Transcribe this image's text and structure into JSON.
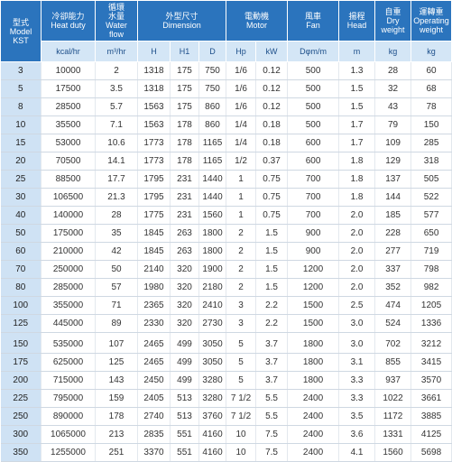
{
  "header": {
    "columns": [
      [
        "型式",
        "Model",
        "KST"
      ],
      [
        "冷卻能力",
        "Heat duty"
      ],
      [
        "循環",
        "水量",
        "Water",
        "flow"
      ],
      [
        "外型尺寸",
        "Dimension"
      ],
      [
        "電動機",
        "Motor"
      ],
      [
        "風車",
        "Fan"
      ],
      [
        "揚程",
        "Head"
      ],
      [
        "自重",
        "Dry",
        "weight"
      ],
      [
        "運轉重",
        "Operating",
        "weight"
      ]
    ],
    "units": [
      "kcal/hr",
      "m³/hr",
      "H",
      "H1",
      "D",
      "Hp",
      "kW",
      "Dφm/m",
      "m",
      "kg",
      "kg"
    ]
  },
  "table": {
    "rows": [
      [
        "3",
        "10000",
        "2",
        "1318",
        "175",
        "750",
        "1/6",
        "0.12",
        "500",
        "1.3",
        "28",
        "60"
      ],
      [
        "5",
        "17500",
        "3.5",
        "1318",
        "175",
        "750",
        "1/6",
        "0.12",
        "500",
        "1.5",
        "32",
        "68"
      ],
      [
        "8",
        "28500",
        "5.7",
        "1563",
        "175",
        "860",
        "1/6",
        "0.12",
        "500",
        "1.5",
        "43",
        "78"
      ],
      [
        "10",
        "35500",
        "7.1",
        "1563",
        "178",
        "860",
        "1/4",
        "0.18",
        "500",
        "1.7",
        "79",
        "150"
      ],
      [
        "15",
        "53000",
        "10.6",
        "1773",
        "178",
        "1165",
        "1/4",
        "0.18",
        "600",
        "1.7",
        "109",
        "285"
      ],
      [
        "20",
        "70500",
        "14.1",
        "1773",
        "178",
        "1165",
        "1/2",
        "0.37",
        "600",
        "1.8",
        "129",
        "318"
      ],
      [
        "25",
        "88500",
        "17.7",
        "1795",
        "231",
        "1440",
        "1",
        "0.75",
        "700",
        "1.8",
        "137",
        "505"
      ],
      [
        "30",
        "106500",
        "21.3",
        "1795",
        "231",
        "1440",
        "1",
        "0.75",
        "700",
        "1.8",
        "144",
        "522"
      ],
      [
        "40",
        "140000",
        "28",
        "1775",
        "231",
        "1560",
        "1",
        "0.75",
        "700",
        "2.0",
        "185",
        "577"
      ],
      [
        "50",
        "175000",
        "35",
        "1845",
        "263",
        "1800",
        "2",
        "1.5",
        "900",
        "2.0",
        "228",
        "650"
      ],
      [
        "60",
        "210000",
        "42",
        "1845",
        "263",
        "1800",
        "2",
        "1.5",
        "900",
        "2.0",
        "277",
        "719"
      ],
      [
        "70",
        "250000",
        "50",
        "2140",
        "320",
        "1900",
        "2",
        "1.5",
        "1200",
        "2.0",
        "337",
        "798"
      ],
      [
        "80",
        "285000",
        "57",
        "1980",
        "320",
        "2180",
        "2",
        "1.5",
        "1200",
        "2.0",
        "352",
        "982"
      ],
      [
        "100",
        "355000",
        "71",
        "2365",
        "320",
        "2410",
        "3",
        "2.2",
        "1500",
        "2.5",
        "474",
        "1205"
      ],
      [
        "125",
        "445000",
        "89",
        "2330",
        "320",
        "2730",
        "3",
        "2.2",
        "1500",
        "3.0",
        "524",
        "1336"
      ],
      [
        "150",
        "535000",
        "107",
        "2465",
        "499",
        "3050",
        "5",
        "3.7",
        "1800",
        "3.0",
        "702",
        "3212"
      ],
      [
        "175",
        "625000",
        "125",
        "2465",
        "499",
        "3050",
        "5",
        "3.7",
        "1800",
        "3.1",
        "855",
        "3415"
      ],
      [
        "200",
        "715000",
        "143",
        "2450",
        "499",
        "3280",
        "5",
        "3.7",
        "1800",
        "3.3",
        "937",
        "3570"
      ],
      [
        "225",
        "795000",
        "159",
        "2405",
        "513",
        "3280",
        "7 1/2",
        "5.5",
        "2400",
        "3.3",
        "1022",
        "3661"
      ],
      [
        "250",
        "890000",
        "178",
        "2740",
        "513",
        "3760",
        "7 1/2",
        "5.5",
        "2400",
        "3.5",
        "1172",
        "3885"
      ],
      [
        "300",
        "1065000",
        "213",
        "2835",
        "551",
        "4160",
        "10",
        "7.5",
        "2400",
        "3.6",
        "1331",
        "4125"
      ],
      [
        "350",
        "1255000",
        "251",
        "3370",
        "551",
        "4160",
        "10",
        "7.5",
        "2400",
        "4.1",
        "1560",
        "5698"
      ]
    ]
  }
}
